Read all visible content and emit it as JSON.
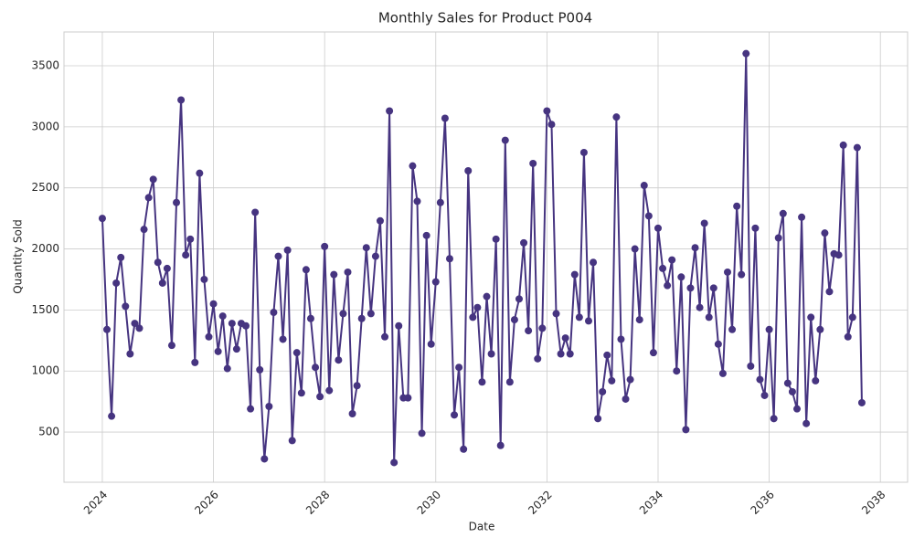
{
  "chart_data": {
    "type": "line",
    "title": "Monthly Sales for Product P004",
    "x_label": "Date",
    "y_label": "Quantity Sold",
    "x": [
      "2024-01",
      "2024-02",
      "2024-03",
      "2024-04",
      "2024-05",
      "2024-06",
      "2024-07",
      "2024-08",
      "2024-09",
      "2024-10",
      "2024-11",
      "2024-12",
      "2025-01",
      "2025-02",
      "2025-03",
      "2025-04",
      "2025-05",
      "2025-06",
      "2025-07",
      "2025-08",
      "2025-09",
      "2025-10",
      "2025-11",
      "2025-12",
      "2026-01",
      "2026-02",
      "2026-03",
      "2026-04",
      "2026-05",
      "2026-06",
      "2026-07",
      "2026-08",
      "2026-09",
      "2026-10",
      "2026-11",
      "2026-12",
      "2027-01",
      "2027-02",
      "2027-03",
      "2027-04",
      "2027-05",
      "2027-06",
      "2027-07",
      "2027-08",
      "2027-09",
      "2027-10",
      "2027-11",
      "2027-12",
      "2028-01",
      "2028-02",
      "2028-03",
      "2028-04",
      "2028-05",
      "2028-06",
      "2028-07",
      "2028-08",
      "2028-09",
      "2028-10",
      "2028-11",
      "2028-12",
      "2029-01",
      "2029-02",
      "2029-03",
      "2029-04",
      "2029-05",
      "2029-06",
      "2029-07",
      "2029-08",
      "2029-09",
      "2029-10",
      "2029-11",
      "2029-12",
      "2030-01",
      "2030-02",
      "2030-03",
      "2030-04",
      "2030-05",
      "2030-06",
      "2030-07",
      "2030-08",
      "2030-09",
      "2030-10",
      "2030-11",
      "2030-12",
      "2031-01",
      "2031-02",
      "2031-03",
      "2031-04",
      "2031-05",
      "2031-06",
      "2031-07",
      "2031-08",
      "2031-09",
      "2031-10",
      "2031-11",
      "2031-12",
      "2032-01",
      "2032-02",
      "2032-03",
      "2032-04",
      "2032-05",
      "2032-06",
      "2032-07",
      "2032-08",
      "2032-09",
      "2032-10",
      "2032-11",
      "2032-12",
      "2033-01",
      "2033-02",
      "2033-03",
      "2033-04",
      "2033-05",
      "2033-06",
      "2033-07",
      "2033-08",
      "2033-09",
      "2033-10",
      "2033-11",
      "2033-12",
      "2034-01",
      "2034-02",
      "2034-03",
      "2034-04",
      "2034-05",
      "2034-06",
      "2034-07",
      "2034-08",
      "2034-09",
      "2034-10",
      "2034-11",
      "2034-12",
      "2035-01",
      "2035-02",
      "2035-03",
      "2035-04",
      "2035-05",
      "2035-06",
      "2035-07",
      "2035-08",
      "2035-09",
      "2035-10",
      "2035-11",
      "2035-12",
      "2036-01",
      "2036-02",
      "2036-03",
      "2036-04",
      "2036-05",
      "2036-06",
      "2036-07",
      "2036-08",
      "2036-09",
      "2036-10",
      "2036-11",
      "2036-12",
      "2037-01",
      "2037-02",
      "2037-03",
      "2037-04",
      "2037-05",
      "2037-06",
      "2037-07",
      "2037-08",
      "2037-09"
    ],
    "values": [
      2250,
      1340,
      630,
      1720,
      1930,
      1530,
      1140,
      1390,
      1350,
      2160,
      2420,
      2570,
      1890,
      1720,
      1840,
      1210,
      2380,
      3220,
      1950,
      2080,
      1070,
      2620,
      1750,
      1280,
      1550,
      1160,
      1450,
      1020,
      1390,
      1180,
      1390,
      1370,
      690,
      2300,
      1010,
      280,
      710,
      1480,
      1940,
      1260,
      1990,
      430,
      1150,
      820,
      1830,
      1430,
      1030,
      790,
      2020,
      840,
      1790,
      1090,
      1470,
      1810,
      650,
      880,
      1430,
      2010,
      1470,
      1940,
      2230,
      1280,
      3130,
      250,
      1370,
      780,
      780,
      2680,
      2390,
      490,
      2110,
      1220,
      1730,
      2380,
      3070,
      1920,
      640,
      1030,
      360,
      2640,
      1440,
      1520,
      910,
      1610,
      1140,
      2080,
      390,
      2890,
      910,
      1420,
      1590,
      2050,
      1330,
      2700,
      1100,
      1350,
      3130,
      3020,
      1470,
      1140,
      1270,
      1140,
      1790,
      1440,
      2790,
      1410,
      1890,
      610,
      830,
      1130,
      920,
      3080,
      1260,
      770,
      930,
      2000,
      1420,
      2520,
      2270,
      1150,
      2170,
      1840,
      1700,
      1910,
      1000,
      1770,
      520,
      1680,
      2010,
      1520,
      2210,
      1440,
      1680,
      1220,
      980,
      1810,
      1340,
      2350,
      1790,
      3600,
      1040,
      2170,
      930,
      800,
      1340,
      610,
      2090,
      2290,
      900,
      830,
      690,
      2260,
      570,
      1440,
      920,
      1340,
      2130,
      1650,
      1960,
      1950,
      2850,
      1280,
      1440,
      2830,
      740
    ],
    "color": "#463480",
    "grid": true,
    "xlim": [
      2023.31,
      2038.49
    ],
    "xticks": [
      2024,
      2026,
      2028,
      2030,
      2032,
      2034,
      2036,
      2038
    ],
    "ylim": [
      89,
      3777
    ],
    "yticks": [
      500,
      1000,
      1500,
      2000,
      2500,
      3000,
      3500
    ]
  }
}
